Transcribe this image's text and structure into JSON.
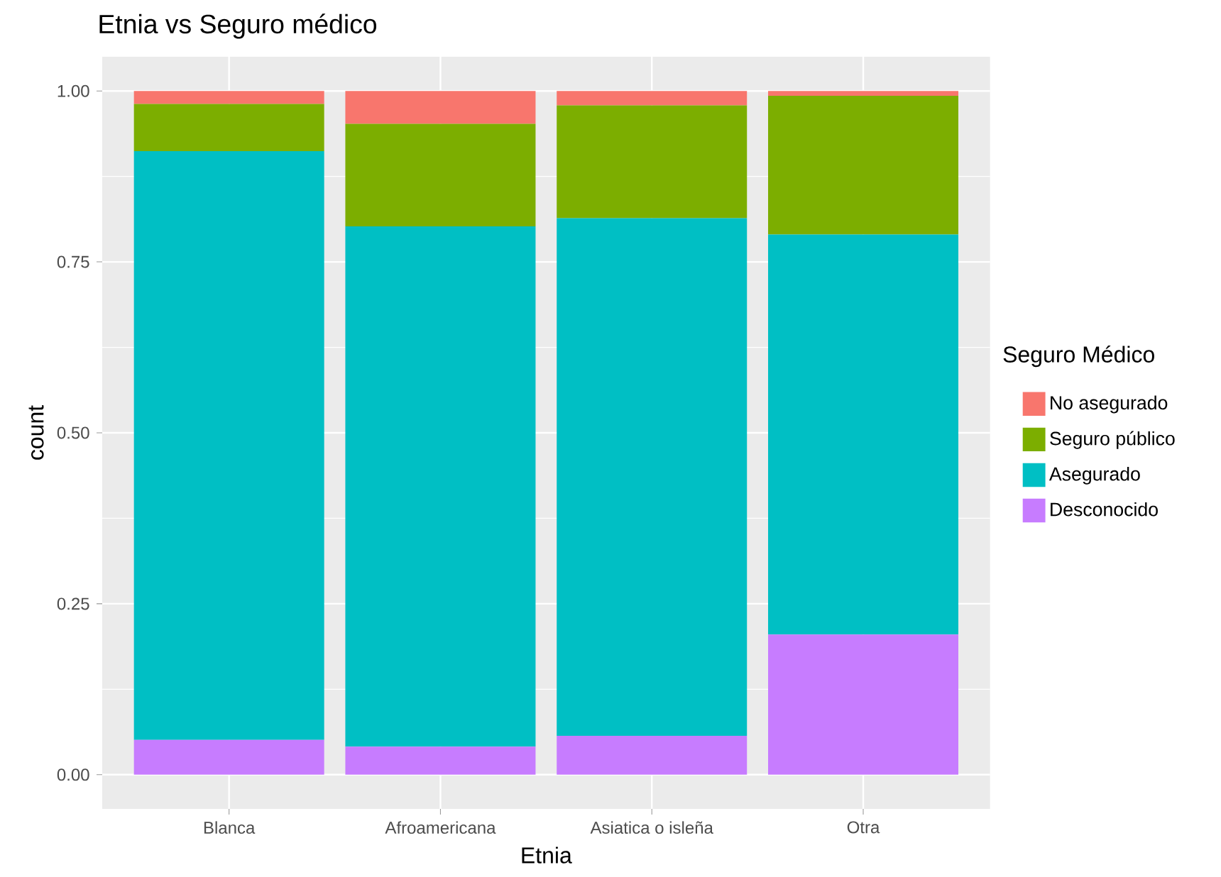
{
  "chart_data": {
    "type": "bar",
    "title": "Etnia vs Seguro médico",
    "xlabel": "Etnia",
    "ylabel": "count",
    "legend_title": "Seguro Médico",
    "categories": [
      "Blanca",
      "Afroamericana",
      "Asiatica o isleña",
      "Otra"
    ],
    "stacked": true,
    "legend": "right",
    "grid": true,
    "ylim": [
      -0.05,
      1.05
    ],
    "yticks": [
      {
        "value": 0,
        "label": "0.00"
      },
      {
        "value": 0.25,
        "label": "0.25"
      },
      {
        "value": 0.5,
        "label": "0.50"
      },
      {
        "value": 0.75,
        "label": "0.75"
      },
      {
        "value": 1,
        "label": "1.00"
      }
    ],
    "series": [
      {
        "name": "Desconocido",
        "color": "#c77cff",
        "values": [
          0.051,
          0.041,
          0.057,
          0.205
        ]
      },
      {
        "name": "Asegurado",
        "color": "#00bfc4",
        "values": [
          0.861,
          0.761,
          0.757,
          0.585
        ]
      },
      {
        "name": "Seguro público",
        "color": "#7cae00",
        "values": [
          0.069,
          0.15,
          0.165,
          0.203
        ]
      },
      {
        "name": "No asegurado",
        "color": "#f8766d",
        "values": [
          0.019,
          0.048,
          0.021,
          0.007
        ]
      }
    ]
  }
}
